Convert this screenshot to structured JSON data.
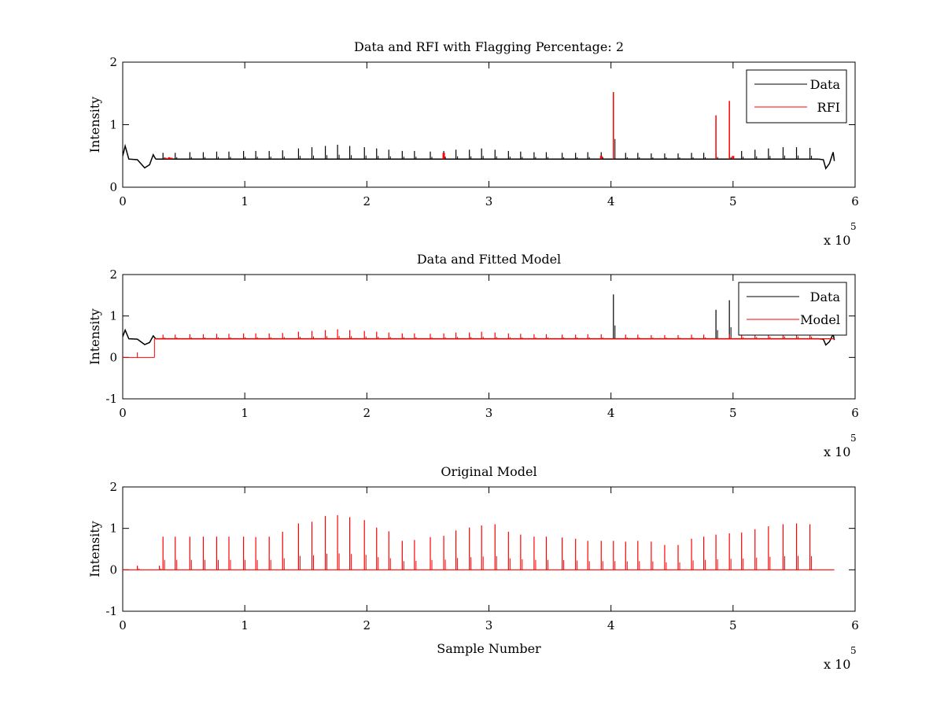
{
  "figure": {
    "background": "#ffffff",
    "exponent_label": "x 10",
    "exponent_power": "5"
  },
  "chart_data": [
    {
      "type": "line",
      "title": "Data and RFI with Flagging Percentage: 2",
      "xlabel": "",
      "ylabel": "Intensity",
      "xlim": [
        0,
        6
      ],
      "ylim": [
        0,
        2
      ],
      "x_unit_multiplier": 100000,
      "xticks": [
        0,
        1,
        2,
        3,
        4,
        5,
        6
      ],
      "xtick_labels": [
        "0",
        "1",
        "2",
        "3",
        "4",
        "5",
        "6"
      ],
      "yticks": [
        0,
        1,
        2
      ],
      "ytick_labels": [
        "0",
        "1",
        "2"
      ],
      "legend_location": "top-right",
      "series": [
        {
          "name": "Data",
          "color": "#000000",
          "baseline": 0.45,
          "start_feature": [
            [
              0.0,
              0.5
            ],
            [
              0.02,
              0.66
            ],
            [
              0.05,
              0.45
            ],
            [
              0.12,
              0.44
            ],
            [
              0.18,
              0.31
            ],
            [
              0.22,
              0.36
            ],
            [
              0.25,
              0.52
            ],
            [
              0.27,
              0.45
            ]
          ],
          "end_feature": [
            [
              5.7,
              0.45
            ],
            [
              5.74,
              0.44
            ],
            [
              5.76,
              0.3
            ],
            [
              5.79,
              0.38
            ],
            [
              5.82,
              0.56
            ],
            [
              5.83,
              0.42
            ]
          ],
          "spikes_x": [
            0.33,
            0.43,
            0.55,
            0.66,
            0.77,
            0.87,
            0.99,
            1.09,
            1.2,
            1.31,
            1.44,
            1.55,
            1.66,
            1.76,
            1.86,
            1.98,
            2.08,
            2.18,
            2.29,
            2.39,
            2.52,
            2.63,
            2.73,
            2.84,
            2.94,
            3.05,
            3.16,
            3.26,
            3.37,
            3.47,
            3.6,
            3.71,
            3.81,
            3.92,
            4.02,
            4.12,
            4.22,
            4.33,
            4.44,
            4.55,
            4.66,
            4.76,
            4.86,
            4.97,
            5.07,
            5.18,
            5.29,
            5.41,
            5.52,
            5.63
          ],
          "spikes_y": [
            0.55,
            0.55,
            0.56,
            0.56,
            0.57,
            0.57,
            0.58,
            0.58,
            0.58,
            0.59,
            0.62,
            0.64,
            0.66,
            0.68,
            0.66,
            0.64,
            0.62,
            0.6,
            0.58,
            0.58,
            0.57,
            0.58,
            0.6,
            0.6,
            0.62,
            0.6,
            0.58,
            0.57,
            0.56,
            0.56,
            0.55,
            0.55,
            0.56,
            0.56,
            1.52,
            0.55,
            0.55,
            0.54,
            0.54,
            0.54,
            0.55,
            0.55,
            0.56,
            0.56,
            0.58,
            0.6,
            0.62,
            0.64,
            0.64,
            0.63
          ]
        },
        {
          "name": "RFI",
          "color": "#ff0000",
          "points": [
            [
              0.35,
              0.47
            ],
            [
              0.38,
              0.48
            ],
            [
              0.4,
              0.47
            ],
            [
              2.63,
              0.55
            ],
            [
              3.92,
              0.5
            ],
            [
              4.02,
              1.52
            ],
            [
              4.86,
              1.15
            ],
            [
              4.97,
              1.38
            ],
            [
              5.0,
              0.5
            ]
          ]
        }
      ]
    },
    {
      "type": "line",
      "title": "Data and Fitted Model",
      "xlabel": "",
      "ylabel": "Intensity",
      "xlim": [
        0,
        6
      ],
      "ylim": [
        -1,
        2
      ],
      "x_unit_multiplier": 100000,
      "xticks": [
        0,
        1,
        2,
        3,
        4,
        5,
        6
      ],
      "xtick_labels": [
        "0",
        "1",
        "2",
        "3",
        "4",
        "5",
        "6"
      ],
      "yticks": [
        -1,
        0,
        1,
        2
      ],
      "ytick_labels": [
        "-1",
        "0",
        "1",
        "2"
      ],
      "legend_location": "top-right",
      "series": [
        {
          "name": "Data",
          "color": "#000000",
          "baseline": 0.45,
          "start_feature": [
            [
              0.0,
              0.5
            ],
            [
              0.02,
              0.66
            ],
            [
              0.05,
              0.45
            ],
            [
              0.12,
              0.44
            ],
            [
              0.18,
              0.31
            ],
            [
              0.22,
              0.36
            ],
            [
              0.25,
              0.52
            ],
            [
              0.27,
              0.45
            ]
          ],
          "end_feature": [
            [
              5.7,
              0.45
            ],
            [
              5.74,
              0.44
            ],
            [
              5.76,
              0.3
            ],
            [
              5.79,
              0.38
            ],
            [
              5.82,
              0.56
            ],
            [
              5.83,
              0.42
            ]
          ],
          "spikes_x": [
            4.02,
            4.86,
            4.97
          ],
          "spikes_y": [
            1.52,
            1.15,
            1.38
          ]
        },
        {
          "name": "Model",
          "color": "#ff0000",
          "pre_segment": [
            [
              0.0,
              0.0
            ],
            [
              0.26,
              0.0
            ]
          ],
          "pre_spikes_x": [
            0.12
          ],
          "pre_spikes_y": [
            0.12
          ],
          "baseline": 0.45,
          "start_x": 0.26,
          "end_x": 5.83,
          "spikes_x": [
            0.33,
            0.43,
            0.55,
            0.66,
            0.77,
            0.87,
            0.99,
            1.09,
            1.2,
            1.31,
            1.44,
            1.55,
            1.66,
            1.76,
            1.86,
            1.98,
            2.08,
            2.18,
            2.29,
            2.39,
            2.52,
            2.63,
            2.73,
            2.84,
            2.94,
            3.05,
            3.16,
            3.26,
            3.37,
            3.47,
            3.6,
            3.71,
            3.81,
            3.92,
            4.12,
            4.22,
            4.33,
            4.44,
            4.55,
            4.66,
            4.76,
            4.97,
            5.07,
            5.18,
            5.29,
            5.41,
            5.52,
            5.63
          ],
          "spikes_y": [
            0.55,
            0.55,
            0.56,
            0.56,
            0.57,
            0.57,
            0.58,
            0.58,
            0.58,
            0.59,
            0.62,
            0.64,
            0.66,
            0.68,
            0.66,
            0.64,
            0.62,
            0.6,
            0.58,
            0.58,
            0.57,
            0.58,
            0.6,
            0.6,
            0.62,
            0.6,
            0.58,
            0.57,
            0.56,
            0.56,
            0.55,
            0.55,
            0.56,
            0.56,
            0.55,
            0.55,
            0.54,
            0.54,
            0.54,
            0.55,
            0.55,
            0.56,
            0.58,
            0.6,
            0.62,
            0.64,
            0.64,
            0.63
          ]
        }
      ]
    },
    {
      "type": "line",
      "title": "Original Model",
      "xlabel": "Sample Number",
      "ylabel": "Intensity",
      "xlim": [
        0,
        6
      ],
      "ylim": [
        -1,
        2
      ],
      "x_unit_multiplier": 100000,
      "xticks": [
        0,
        1,
        2,
        3,
        4,
        5,
        6
      ],
      "xtick_labels": [
        "0",
        "1",
        "2",
        "3",
        "4",
        "5",
        "6"
      ],
      "yticks": [
        -1,
        0,
        1,
        2
      ],
      "ytick_labels": [
        "-1",
        "0",
        "1",
        "2"
      ],
      "legend_location": "none",
      "series": [
        {
          "color": "#ff0000",
          "baseline": 0.0,
          "start_x": 0.0,
          "end_x": 5.83,
          "spikes_x": [
            0.12,
            0.3,
            0.33,
            0.43,
            0.55,
            0.66,
            0.77,
            0.87,
            0.99,
            1.09,
            1.2,
            1.31,
            1.44,
            1.55,
            1.66,
            1.76,
            1.86,
            1.98,
            2.08,
            2.18,
            2.29,
            2.39,
            2.52,
            2.63,
            2.73,
            2.84,
            2.94,
            3.05,
            3.16,
            3.26,
            3.37,
            3.47,
            3.6,
            3.71,
            3.81,
            3.92,
            4.02,
            4.12,
            4.22,
            4.33,
            4.44,
            4.55,
            4.66,
            4.76,
            4.86,
            4.97,
            5.07,
            5.18,
            5.29,
            5.41,
            5.52,
            5.63
          ],
          "spikes_y": [
            0.1,
            0.1,
            0.8,
            0.8,
            0.8,
            0.8,
            0.8,
            0.8,
            0.8,
            0.79,
            0.8,
            0.92,
            1.12,
            1.16,
            1.3,
            1.32,
            1.27,
            1.2,
            1.02,
            0.93,
            0.7,
            0.72,
            0.79,
            0.82,
            0.95,
            1.02,
            1.07,
            1.1,
            0.92,
            0.85,
            0.8,
            0.8,
            0.78,
            0.75,
            0.7,
            0.7,
            0.7,
            0.68,
            0.7,
            0.68,
            0.6,
            0.6,
            0.75,
            0.8,
            0.85,
            0.88,
            0.9,
            0.98,
            1.05,
            1.1,
            1.12,
            1.1
          ]
        }
      ]
    }
  ]
}
